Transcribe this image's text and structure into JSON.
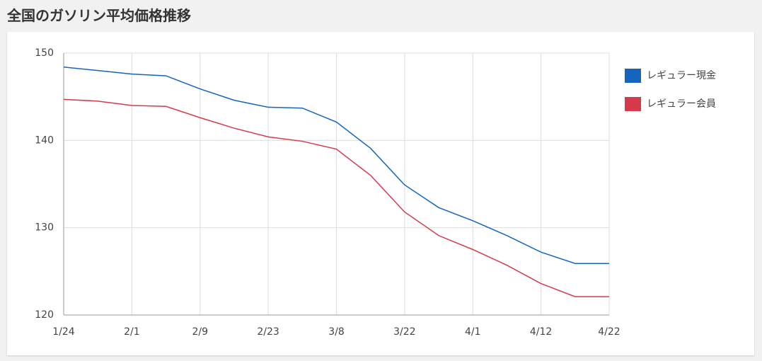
{
  "chart_data": {
    "type": "line",
    "title": "全国のガソリン平均価格推移",
    "categories": [
      "1/24",
      null,
      "2/1",
      null,
      "2/9",
      null,
      "2/23",
      null,
      "3/8",
      null,
      "3/22",
      null,
      "4/1",
      null,
      "4/12",
      null,
      "4/22"
    ],
    "series": [
      {
        "name": "レギュラー現金",
        "color": "#1565c0",
        "values": [
          148.4,
          148.0,
          147.6,
          147.4,
          145.9,
          144.6,
          143.8,
          143.7,
          142.1,
          139.1,
          134.9,
          132.3,
          130.8,
          129.1,
          127.2,
          125.9,
          125.9
        ]
      },
      {
        "name": "レギュラー会員",
        "color": "#d63a4a",
        "values": [
          144.7,
          144.5,
          144.0,
          143.9,
          142.6,
          141.4,
          140.4,
          139.9,
          139.0,
          136.0,
          131.8,
          129.1,
          127.5,
          125.7,
          123.6,
          122.1,
          122.1
        ]
      }
    ],
    "ylim": [
      120,
      150
    ],
    "yticks": [
      120,
      130,
      140,
      150
    ],
    "grid": true,
    "legend": "right"
  }
}
